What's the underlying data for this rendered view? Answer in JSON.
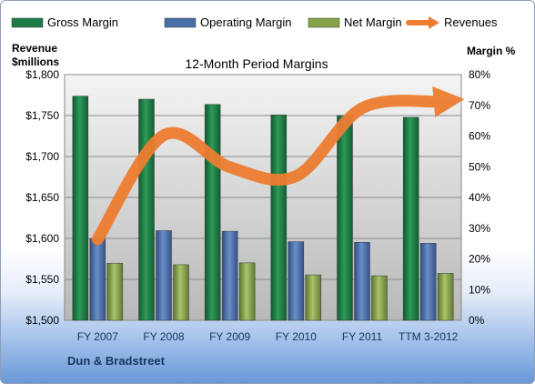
{
  "chart_data": {
    "type": "bar",
    "title": "12-Month Period Margins",
    "company": "Dun & Bradstreet",
    "ylabel_left": [
      "Revenue",
      "$millions"
    ],
    "ylabel_right": "Margin %",
    "categories": [
      "FY 2007",
      "FY 2008",
      "FY 2009",
      "FY 2010",
      "FY 2011",
      "TTM 3-2012"
    ],
    "y_left": {
      "min": 1500,
      "max": 1800,
      "step": 50,
      "ticks": [
        "$1,500",
        "$1,550",
        "$1,600",
        "$1,650",
        "$1,700",
        "$1,750",
        "$1,800"
      ]
    },
    "y_right": {
      "min": 0,
      "max": 80,
      "step": 10,
      "ticks": [
        "0%",
        "10%",
        "20%",
        "30%",
        "40%",
        "50%",
        "60%",
        "70%",
        "80%"
      ]
    },
    "grid": true,
    "legend_position": "top",
    "series": [
      {
        "name": "Gross Margin",
        "type": "bar",
        "axis": "right",
        "color": "#1e7b45",
        "values": [
          73.0,
          72.0,
          70.3,
          66.9,
          66.7,
          66.1
        ]
      },
      {
        "name": "Operating Margin",
        "type": "bar",
        "axis": "right",
        "color": "#4a6fa8",
        "values": [
          26.6,
          29.2,
          29.0,
          25.6,
          25.4,
          25.1
        ]
      },
      {
        "name": "Net Margin",
        "type": "bar",
        "axis": "right",
        "color": "#86a349",
        "values": [
          18.6,
          18.1,
          18.7,
          14.8,
          14.5,
          15.3
        ]
      },
      {
        "name": "Revenues",
        "type": "line",
        "axis": "left",
        "color": "#ed7d31",
        "values": [
          1599,
          1726,
          1687,
          1676,
          1759,
          1766
        ]
      }
    ]
  }
}
